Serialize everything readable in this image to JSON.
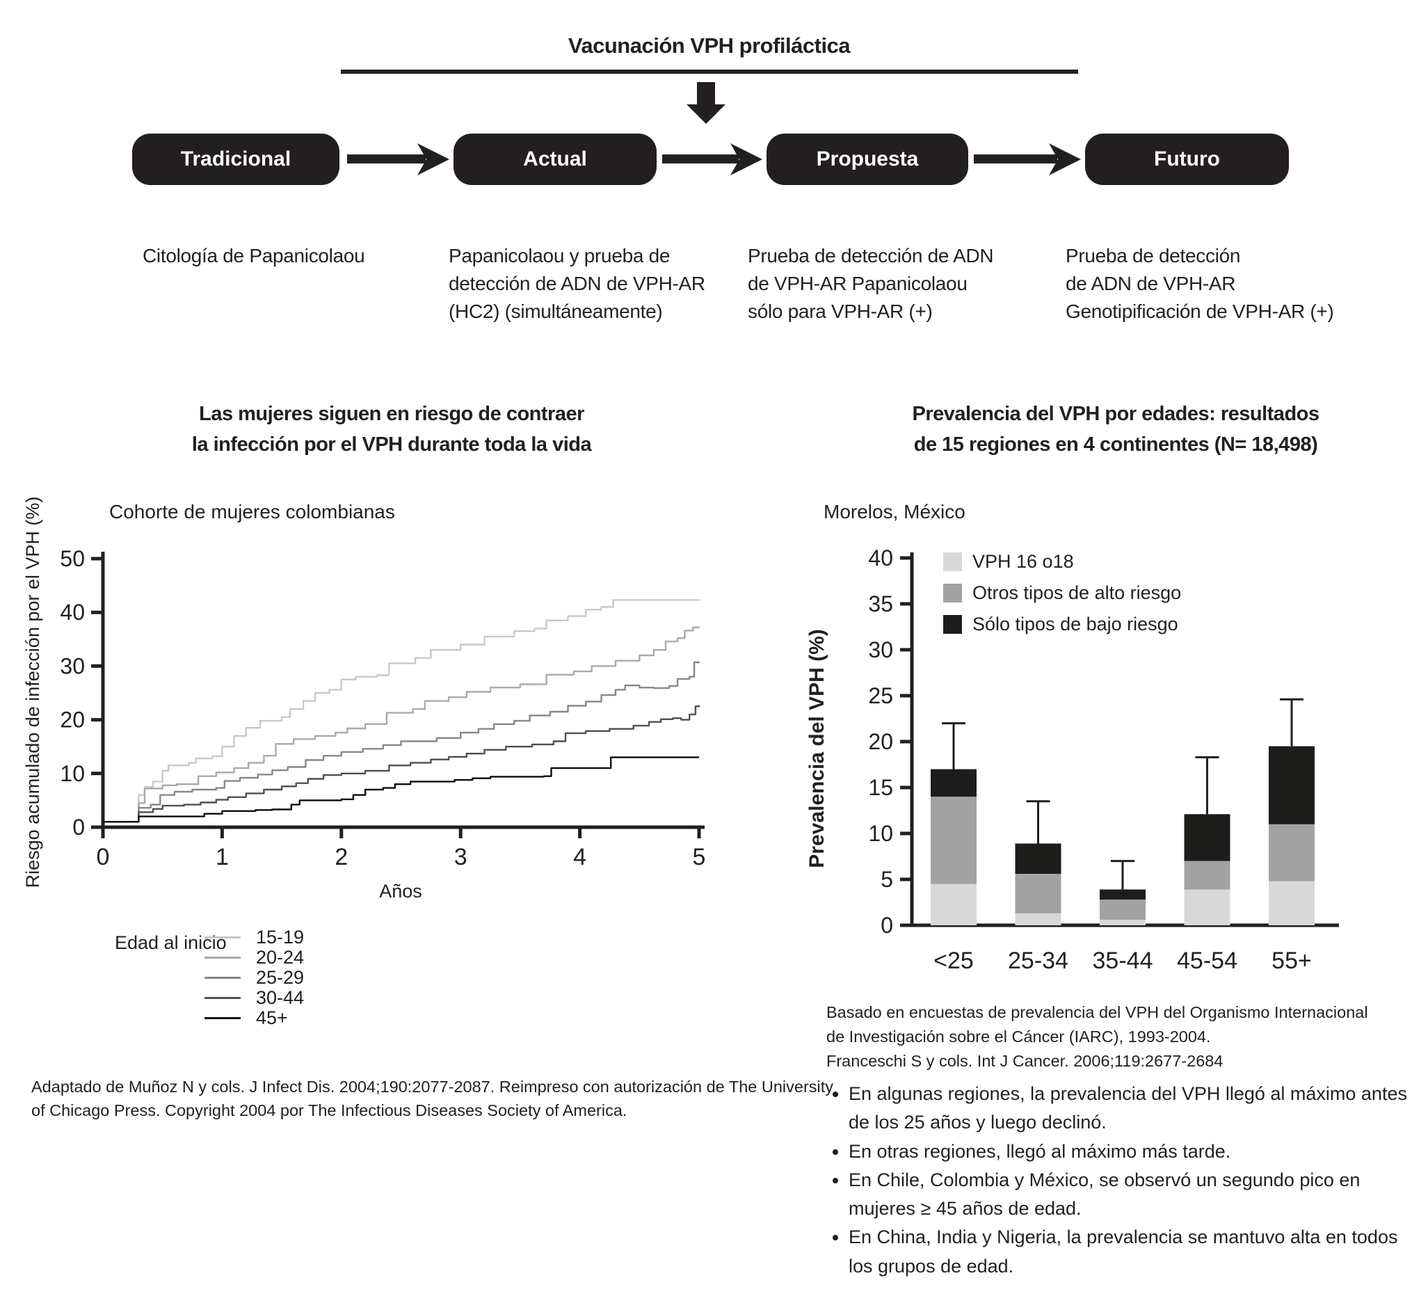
{
  "colors": {
    "ink": "#231f20",
    "white": "#ffffff"
  },
  "flow": {
    "title": "Vacunación VPH profiláctica",
    "stages": [
      {
        "label": "Tradicional",
        "desc_lines": [
          "Citología de Papanicolaou"
        ]
      },
      {
        "label": "Actual",
        "desc_lines": [
          "Papanicolaou y prueba de",
          "detección de ADN de VPH-AR",
          "(HC2) (simultáneamente)"
        ]
      },
      {
        "label": "Propuesta",
        "desc_lines": [
          "Prueba de detección de ADN",
          "de VPH-AR Papanicolaou",
          "sólo para VPH-AR (+)"
        ]
      },
      {
        "label": "Futuro",
        "desc_lines": [
          "Prueba de detección",
          "de ADN de VPH-AR",
          "Genotipificación de VPH-AR (+)"
        ]
      }
    ]
  },
  "left_chart": {
    "title_lines": [
      "Las mujeres siguen en riesgo de contraer",
      "la infección por el VPH durante toda la vida"
    ],
    "subtitle": "Cohorte de mujeres colombianas",
    "citation_lines": [
      "Adaptado de Muñoz N y cols. J Infect Dis. 2004;190:2077-2087. Reimpreso con autorización de The University",
      "of Chicago Press. Copyright 2004 por The Infectious Diseases Society of America."
    ]
  },
  "right_chart": {
    "title_lines": [
      "Prevalencia del VPH por edades: resultados",
      "de 15 regiones en 4 continentes (N= 18,498)"
    ],
    "subtitle": "Morelos, México",
    "citation_lines": [
      "Basado en encuestas de prevalencia del VPH del Organismo Internacional",
      "de Investigación sobre el Cáncer (IARC), 1993-2004.",
      "Franceschi S y cols. Int J Cancer. 2006;119:2677-2684"
    ],
    "bullets": [
      "En algunas regiones, la prevalencia del VPH llegó al máximo antes de los 25 años y luego declinó.",
      "En otras regiones, llegó al máximo más tarde.",
      "En Chile, Colombia y México, se observó un segundo pico en mujeres ≥ 45 años de edad.",
      "En China, India y Nigeria, la prevalencia se mantuvo alta en todos los grupos de edad."
    ]
  },
  "chart_data": [
    {
      "type": "line",
      "line_style": "step-after",
      "title": "Las mujeres siguen en riesgo de contraer la infección por el VPH durante toda la vida",
      "subtitle": "Cohorte de mujeres colombianas",
      "xlabel": "Años",
      "ylabel": "Riesgo acumulado de infección por el VPH (%)",
      "xlim": [
        0,
        5
      ],
      "ylim": [
        0,
        50
      ],
      "xticks": [
        0,
        1,
        2,
        3,
        4,
        5
      ],
      "yticks": [
        0,
        10,
        20,
        30,
        40,
        50
      ],
      "grid": false,
      "legend_title": "Edad al inicio",
      "legend_position": "below-left",
      "series": [
        {
          "name": "15-19",
          "color": "#c8c8c8",
          "points": [
            [
              0,
              1
            ],
            [
              0.27,
              1
            ],
            [
              0.3,
              6
            ],
            [
              0.35,
              7.5
            ],
            [
              0.42,
              8.5
            ],
            [
              0.5,
              10.5
            ],
            [
              0.55,
              11.5
            ],
            [
              0.72,
              12
            ],
            [
              0.78,
              12.8
            ],
            [
              0.92,
              13.2
            ],
            [
              1.0,
              15
            ],
            [
              1.1,
              17
            ],
            [
              1.2,
              18.5
            ],
            [
              1.32,
              19.8
            ],
            [
              1.5,
              20.5
            ],
            [
              1.57,
              22
            ],
            [
              1.68,
              23.5
            ],
            [
              1.78,
              25
            ],
            [
              1.9,
              25.6
            ],
            [
              2.0,
              27.5
            ],
            [
              2.12,
              28
            ],
            [
              2.3,
              28.3
            ],
            [
              2.4,
              30.5
            ],
            [
              2.62,
              31.5
            ],
            [
              2.75,
              33
            ],
            [
              3.0,
              34
            ],
            [
              3.2,
              35.5
            ],
            [
              3.45,
              36.5
            ],
            [
              3.62,
              37
            ],
            [
              3.72,
              38.5
            ],
            [
              3.9,
              39.3
            ],
            [
              4.05,
              40.5
            ],
            [
              4.18,
              41
            ],
            [
              4.28,
              42.3
            ],
            [
              5,
              42.4
            ]
          ]
        },
        {
          "name": "20-24",
          "color": "#a9a9a9",
          "points": [
            [
              0,
              1
            ],
            [
              0.27,
              1
            ],
            [
              0.3,
              4.5
            ],
            [
              0.35,
              7.2
            ],
            [
              0.5,
              7.8
            ],
            [
              0.62,
              8
            ],
            [
              0.8,
              9.5
            ],
            [
              0.95,
              10.2
            ],
            [
              1.1,
              11
            ],
            [
              1.22,
              12
            ],
            [
              1.35,
              13.3
            ],
            [
              1.45,
              15.5
            ],
            [
              1.6,
              16.4
            ],
            [
              1.78,
              17
            ],
            [
              1.95,
              17.6
            ],
            [
              2.05,
              18.4
            ],
            [
              2.2,
              19.2
            ],
            [
              2.38,
              21.3
            ],
            [
              2.6,
              22
            ],
            [
              2.7,
              23.5
            ],
            [
              2.9,
              24.2
            ],
            [
              3.05,
              25.2
            ],
            [
              3.25,
              26
            ],
            [
              3.5,
              26.6
            ],
            [
              3.72,
              28.4
            ],
            [
              3.95,
              29
            ],
            [
              4.1,
              30
            ],
            [
              4.3,
              31
            ],
            [
              4.5,
              32
            ],
            [
              4.62,
              33
            ],
            [
              4.72,
              34.6
            ],
            [
              4.82,
              35.2
            ],
            [
              4.88,
              36.6
            ],
            [
              4.95,
              37.2
            ],
            [
              5,
              37.3
            ]
          ]
        },
        {
          "name": "25-29",
          "color": "#878787",
          "points": [
            [
              0,
              1
            ],
            [
              0.27,
              1
            ],
            [
              0.3,
              3.6
            ],
            [
              0.4,
              4.2
            ],
            [
              0.48,
              6
            ],
            [
              0.6,
              6.6
            ],
            [
              0.75,
              7
            ],
            [
              0.95,
              7.3
            ],
            [
              1.02,
              8.6
            ],
            [
              1.15,
              9.2
            ],
            [
              1.3,
              9.8
            ],
            [
              1.42,
              10.6
            ],
            [
              1.55,
              11.2
            ],
            [
              1.7,
              12.5
            ],
            [
              1.85,
              13.3
            ],
            [
              2.0,
              14
            ],
            [
              2.18,
              14.6
            ],
            [
              2.35,
              15.3
            ],
            [
              2.5,
              16
            ],
            [
              2.8,
              16.6
            ],
            [
              3.0,
              17.6
            ],
            [
              3.15,
              18.3
            ],
            [
              3.28,
              19.2
            ],
            [
              3.45,
              19.8
            ],
            [
              3.58,
              20.8
            ],
            [
              3.75,
              21.5
            ],
            [
              3.9,
              22.6
            ],
            [
              4.05,
              23.4
            ],
            [
              4.18,
              24.6
            ],
            [
              4.3,
              25.6
            ],
            [
              4.38,
              26.4
            ],
            [
              4.5,
              26
            ],
            [
              4.62,
              25.9
            ],
            [
              4.75,
              26.3
            ],
            [
              4.82,
              27.6
            ],
            [
              4.92,
              28
            ],
            [
              4.96,
              30.7
            ],
            [
              5,
              30.8
            ]
          ]
        },
        {
          "name": "30-44",
          "color": "#4f4f4f",
          "points": [
            [
              0,
              1
            ],
            [
              0.27,
              1
            ],
            [
              0.3,
              2.8
            ],
            [
              0.42,
              3.4
            ],
            [
              0.5,
              4
            ],
            [
              0.68,
              4.2
            ],
            [
              0.82,
              4.6
            ],
            [
              0.95,
              5.1
            ],
            [
              1.05,
              5.6
            ],
            [
              1.2,
              6.3
            ],
            [
              1.35,
              7
            ],
            [
              1.5,
              7.6
            ],
            [
              1.62,
              8.2
            ],
            [
              1.72,
              9
            ],
            [
              1.85,
              9.7
            ],
            [
              2.0,
              10
            ],
            [
              2.2,
              10.5
            ],
            [
              2.4,
              11.5
            ],
            [
              2.58,
              12
            ],
            [
              2.75,
              12.6
            ],
            [
              2.9,
              13.1
            ],
            [
              3.05,
              13.7
            ],
            [
              3.2,
              14.4
            ],
            [
              3.38,
              15
            ],
            [
              3.6,
              15.4
            ],
            [
              3.78,
              16
            ],
            [
              3.88,
              17.5
            ],
            [
              4.05,
              17.9
            ],
            [
              4.25,
              18.3
            ],
            [
              4.45,
              18.9
            ],
            [
              4.58,
              19.6
            ],
            [
              4.68,
              20.1
            ],
            [
              4.78,
              20.3
            ],
            [
              4.85,
              20
            ],
            [
              4.92,
              21
            ],
            [
              4.97,
              22.5
            ],
            [
              5,
              22.7
            ]
          ]
        },
        {
          "name": "45+",
          "color": "#0b0b0b",
          "points": [
            [
              0,
              1
            ],
            [
              0.27,
              1
            ],
            [
              0.3,
              2
            ],
            [
              0.75,
              2
            ],
            [
              0.85,
              2.5
            ],
            [
              1.0,
              3
            ],
            [
              1.28,
              3.2
            ],
            [
              1.42,
              3.3
            ],
            [
              1.58,
              4.2
            ],
            [
              1.65,
              5
            ],
            [
              2.0,
              5.2
            ],
            [
              2.1,
              6
            ],
            [
              2.2,
              7
            ],
            [
              2.35,
              7.3
            ],
            [
              2.45,
              8
            ],
            [
              2.58,
              8.5
            ],
            [
              2.95,
              8.8
            ],
            [
              3.1,
              9.1
            ],
            [
              3.25,
              9.4
            ],
            [
              3.7,
              9.5
            ],
            [
              3.76,
              11
            ],
            [
              4.2,
              11
            ],
            [
              4.26,
              13
            ],
            [
              5,
              13
            ]
          ]
        }
      ]
    },
    {
      "type": "bar",
      "stacked": true,
      "title": "Prevalencia del VPH por edades: resultados de 15 regiones en 4 continentes (N= 18,498)",
      "subtitle": "Morelos, México",
      "xlabel": "",
      "ylabel": "Prevalencia del VPH (%)",
      "ylim": [
        0,
        40
      ],
      "yticks": [
        0,
        5,
        10,
        15,
        20,
        25,
        30,
        35,
        40
      ],
      "grid": false,
      "legend_position": "top-left",
      "categories": [
        "<25",
        "25-34",
        "35-44",
        "45-54",
        "55+"
      ],
      "series": [
        {
          "name": "VPH 16 o18",
          "color": "#d8d8d8",
          "values": [
            4.5,
            1.3,
            0.6,
            3.9,
            4.8
          ]
        },
        {
          "name": "Otros tipos de alto riesgo",
          "color": "#a2a2a2",
          "values": [
            9.5,
            4.3,
            2.2,
            3.1,
            6.2
          ]
        },
        {
          "name": "Sólo tipos de bajo riesgo",
          "color": "#1d1d1b",
          "values": [
            3.0,
            3.3,
            1.1,
            5.1,
            8.5
          ]
        }
      ],
      "totals": [
        17.0,
        8.9,
        3.9,
        12.1,
        19.5
      ],
      "error_bar_tops": [
        22.0,
        13.5,
        7.0,
        18.3,
        24.6
      ]
    }
  ]
}
